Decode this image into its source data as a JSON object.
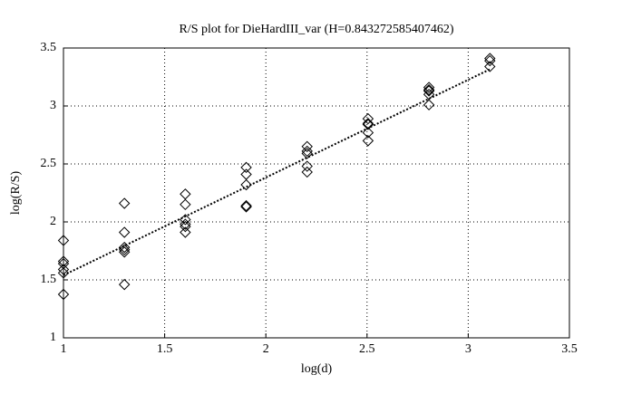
{
  "chart_data": {
    "type": "scatter",
    "title": "R/S plot for DieHardIII_var (H=0.843272585407462)",
    "x_label": "log(d)",
    "y_label": "log(R/S)",
    "xlim": [
      1,
      3.5
    ],
    "xticks": [
      1,
      1.5,
      2,
      2.5,
      3,
      3.5
    ],
    "ylim": [
      1,
      3.5
    ],
    "yticks": [
      1,
      1.5,
      2,
      2.5,
      3,
      3.5
    ],
    "grid": true,
    "series": [
      {
        "color": "#000000",
        "marker": "diamond",
        "x": [
          1,
          1,
          1,
          1,
          1,
          1,
          1.301,
          1.301,
          1.301,
          1.301,
          1.301,
          1.301,
          1.602,
          1.602,
          1.602,
          1.602,
          1.602,
          1.602,
          1.903,
          1.903,
          1.903,
          1.903,
          1.903,
          2.204,
          2.204,
          2.204,
          2.204,
          2.204,
          2.505,
          2.505,
          2.505,
          2.505,
          2.505,
          2.806,
          2.806,
          2.806,
          2.806,
          2.806,
          3.107,
          3.107,
          3.107
        ],
        "values": [
          1.84,
          1.66,
          1.64,
          1.59,
          1.56,
          1.375,
          2.16,
          1.91,
          1.78,
          1.76,
          1.74,
          1.46,
          2.24,
          2.15,
          2.02,
          1.98,
          1.96,
          1.91,
          2.47,
          2.41,
          2.32,
          2.14,
          2.13,
          2.65,
          2.61,
          2.59,
          2.48,
          2.43,
          2.89,
          2.85,
          2.84,
          2.77,
          2.7,
          3.16,
          3.14,
          3.13,
          3.1,
          3.01,
          3.41,
          3.39,
          3.34
        ]
      },
      {
        "color": "#000000",
        "line_style": "dotted",
        "x": [
          1,
          3.107
        ],
        "values": [
          1.54,
          3.316
        ]
      }
    ]
  }
}
